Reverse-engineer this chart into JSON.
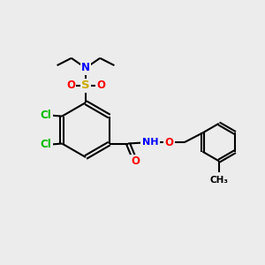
{
  "bg_color": "#ececec",
  "bond_color": "#000000",
  "bond_width": 1.5,
  "atom_colors": {
    "C": "#000000",
    "N": "#0000ff",
    "O": "#ff0000",
    "S": "#ccaa00",
    "Cl": "#00bb00",
    "H": "#888888"
  },
  "font_size": 8.5
}
